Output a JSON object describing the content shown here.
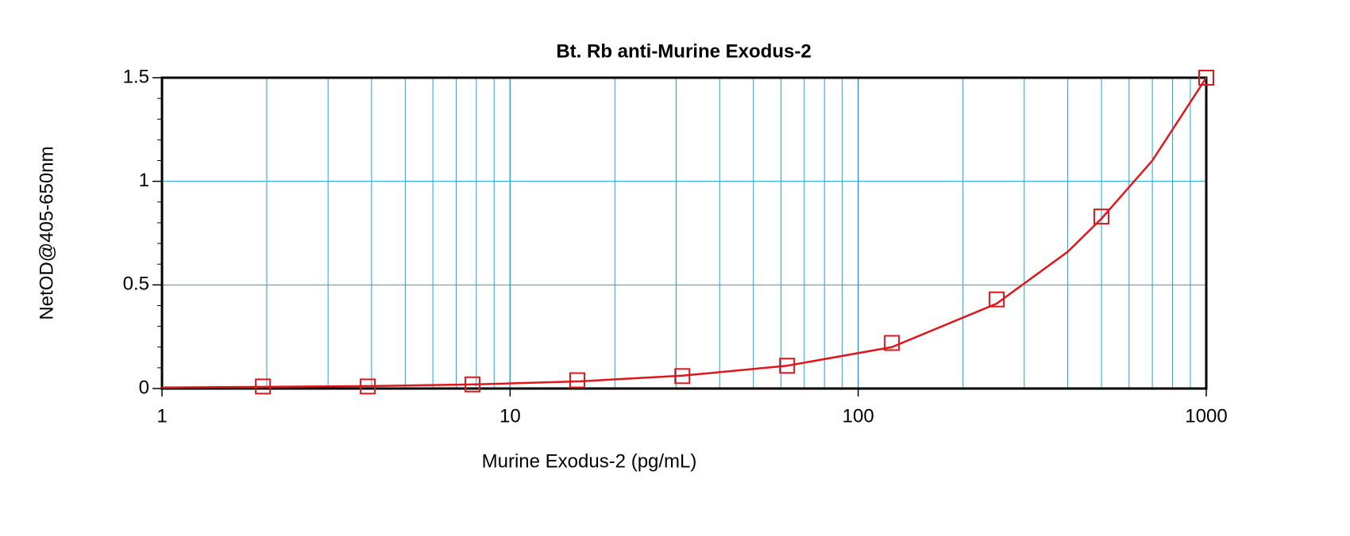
{
  "chart_data": {
    "type": "scatter",
    "title": "Bt. Rb anti-Murine Exodus-2",
    "x_label": "Murine Exodus-2 (pg/mL)",
    "y_label": "NetOD@405-650nm",
    "x": [
      1.95,
      3.9,
      7.8,
      15.6,
      31.25,
      62.5,
      125,
      250,
      500,
      1000
    ],
    "values": [
      0.01,
      0.01,
      0.02,
      0.04,
      0.06,
      0.11,
      0.22,
      0.43,
      0.83,
      1.5
    ],
    "color": "#e0161b",
    "curve": {
      "x": [
        1,
        2,
        4,
        8,
        16,
        31.25,
        62.5,
        125,
        250,
        400,
        500,
        700,
        1000
      ],
      "values": [
        0.005,
        0.008,
        0.012,
        0.02,
        0.035,
        0.062,
        0.11,
        0.2,
        0.41,
        0.66,
        0.82,
        1.1,
        1.5
      ]
    },
    "log_x": true,
    "xlim": [
      1,
      1000
    ],
    "xticks": [
      1,
      10,
      100,
      1000
    ],
    "xminor": [
      2,
      3,
      4,
      5,
      6,
      7,
      8,
      9,
      20,
      30,
      40,
      50,
      60,
      70,
      80,
      90,
      200,
      300,
      400,
      500,
      600,
      700,
      800,
      900
    ],
    "ylim": [
      0,
      1.5
    ],
    "yticks": [
      0,
      0.5,
      1,
      1.5
    ],
    "yminor": [
      0.1,
      0.2,
      0.3,
      0.4,
      0.6,
      0.7,
      0.8,
      0.9,
      1.1,
      1.2,
      1.3,
      1.4
    ],
    "grid": true,
    "grid_color": "#1fa3db"
  }
}
